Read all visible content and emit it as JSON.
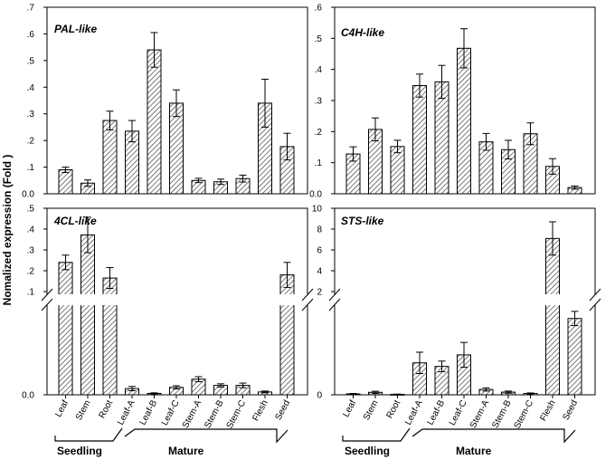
{
  "y_axis_label": "Nomalized expression (Fold )",
  "groups": {
    "seedling": "Seedling",
    "mature": "Mature"
  },
  "chart_data": [
    {
      "type": "bar",
      "title": "PAL-like",
      "categories": [
        "Leaf",
        "Stem",
        "Root",
        "Leaf-A",
        "Leaf-B",
        "Leaf-C",
        "Stem-A",
        "Stem-B",
        "Stem-C",
        "Flesh",
        "Seed"
      ],
      "values": [
        0.09,
        0.04,
        0.275,
        0.235,
        0.54,
        0.34,
        0.05,
        0.045,
        0.057,
        0.34,
        0.177
      ],
      "errors": [
        0.01,
        0.012,
        0.035,
        0.04,
        0.065,
        0.05,
        0.008,
        0.01,
        0.013,
        0.09,
        0.05
      ],
      "ylim": [
        0,
        0.7
      ],
      "yticks": [
        "0.0",
        ".1",
        ".2",
        ".3",
        ".4",
        ".5",
        ".6",
        ".7"
      ]
    },
    {
      "type": "bar",
      "title": "C4H-like",
      "categories": [
        "Leaf",
        "Stem",
        "Root",
        "Leaf-A",
        "Leaf-B",
        "Leaf-C",
        "Stem-A",
        "Stem-B",
        "Stem-C",
        "Flesh",
        "Seed"
      ],
      "values": [
        0.128,
        0.207,
        0.152,
        0.348,
        0.36,
        0.468,
        0.167,
        0.142,
        0.193,
        0.088,
        0.02
      ],
      "errors": [
        0.023,
        0.037,
        0.02,
        0.037,
        0.053,
        0.063,
        0.027,
        0.03,
        0.035,
        0.025,
        0.005
      ],
      "ylim": [
        0,
        0.6
      ],
      "yticks": [
        "0.0",
        ".1",
        ".2",
        ".3",
        ".4",
        ".5",
        ".6"
      ]
    },
    {
      "type": "bar",
      "broken_axis": true,
      "title": "4CL-like",
      "categories": [
        "Leaf",
        "Stem",
        "Root",
        "Leaf-A",
        "Leaf-B",
        "Leaf-C",
        "Stem-A",
        "Stem-B",
        "Stem-C",
        "Flesh",
        "Seed"
      ],
      "values": [
        0.24,
        0.372,
        0.165,
        0.0035,
        0.0008,
        0.0042,
        0.0088,
        0.0053,
        0.0053,
        0.0016,
        0.18
      ],
      "errors": [
        0.035,
        0.085,
        0.05,
        0.0012,
        0.0003,
        0.0009,
        0.0014,
        0.0009,
        0.0013,
        0.0005,
        0.06
      ],
      "lower_ylim": [
        0,
        0.05
      ],
      "upper_ylim": [
        0.1,
        0.5
      ],
      "yticks": [
        "0.0",
        ".1",
        ".2",
        ".3",
        ".4",
        ".5"
      ]
    },
    {
      "type": "bar",
      "broken_axis": true,
      "title": "STS-like",
      "categories": [
        "Leaf",
        "Stem",
        "Root",
        "Leaf-A",
        "Leaf-B",
        "Leaf-C",
        "Stem-A",
        "Stem-B",
        "Stem-C",
        "Flesh",
        "Seed"
      ],
      "values": [
        0.01,
        0.028,
        0.005,
        0.36,
        0.32,
        0.45,
        0.06,
        0.03,
        0.015,
        7.1,
        0.86
      ],
      "errors": [
        0.005,
        0.012,
        0.003,
        0.12,
        0.06,
        0.14,
        0.018,
        0.012,
        0.006,
        1.6,
        0.08
      ],
      "lower_ylim": [
        0,
        1
      ],
      "upper_ylim": [
        2,
        10
      ],
      "yticks": [
        "0",
        "2",
        "4",
        "6",
        "8",
        "10"
      ]
    }
  ]
}
